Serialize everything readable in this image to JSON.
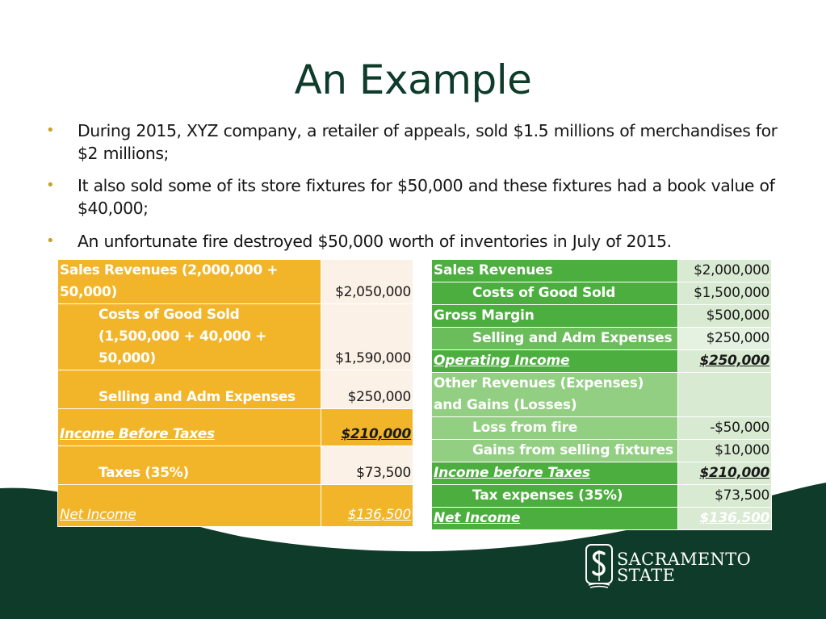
{
  "slide": {
    "title": "An Example",
    "bullets": [
      "During 2015, XYZ company, a retailer of appeals, sold $1.5 millions of merchandises for $2 millions;",
      "It also sold some of its store fixtures for $50,000 and these fixtures had a book value of $40,000;",
      "An unfortunate fire destroyed $50,000 worth of inventories in July of 2015."
    ],
    "bullet_glyph": "•"
  },
  "left_table": {
    "rows": [
      {
        "label": "Sales Revenues (2,000,000 + 50,000)",
        "value": "$2,050,000"
      },
      {
        "label": "Costs of Good Sold (1,500,000 + 40,000 + 50,000)",
        "value": "$1,590,000"
      },
      {
        "label": "Selling and Adm Expenses",
        "value": "$250,000"
      },
      {
        "label": "Income Before Taxes",
        "value": "$210,000"
      },
      {
        "label": "Taxes (35%)",
        "value": "$73,500"
      },
      {
        "label": "Net Income",
        "value": "$136,500"
      }
    ]
  },
  "right_table": {
    "rows": [
      {
        "label": "Sales Revenues",
        "value": "$2,000,000"
      },
      {
        "label": "Costs of Good Sold",
        "value": "$1,500,000"
      },
      {
        "label": "Gross Margin",
        "value": "$500,000"
      },
      {
        "label": "Selling and Adm Expenses",
        "value": "$250,000"
      },
      {
        "label": "Operating Income",
        "value": "$250,000"
      },
      {
        "label": "Other Revenues (Expenses) and Gains (Losses)",
        "value": ""
      },
      {
        "label": "Loss from fire",
        "value": "-$50,000"
      },
      {
        "label": "Gains from selling fixtures",
        "value": "$10,000"
      },
      {
        "label": "Income before Taxes",
        "value": "$210,000"
      },
      {
        "label": "Tax expenses (35%)",
        "value": "$73,500"
      },
      {
        "label": "Net Income",
        "value": "$136,500"
      }
    ]
  },
  "logo": {
    "line1": "SACRAMENTO",
    "line2": "STATE",
    "icon": "sac-state-hornet-s-icon"
  },
  "colors": {
    "title": "#0e3b2a",
    "bullet_dot": "#c8a22a",
    "gold": "#f2b52a",
    "cream": "#fcf1e6",
    "green_dark": "#4cae3f",
    "green_mid": "#6bbd5c",
    "green_light": "#93cf82",
    "footer_green": "#0e3b2a"
  }
}
